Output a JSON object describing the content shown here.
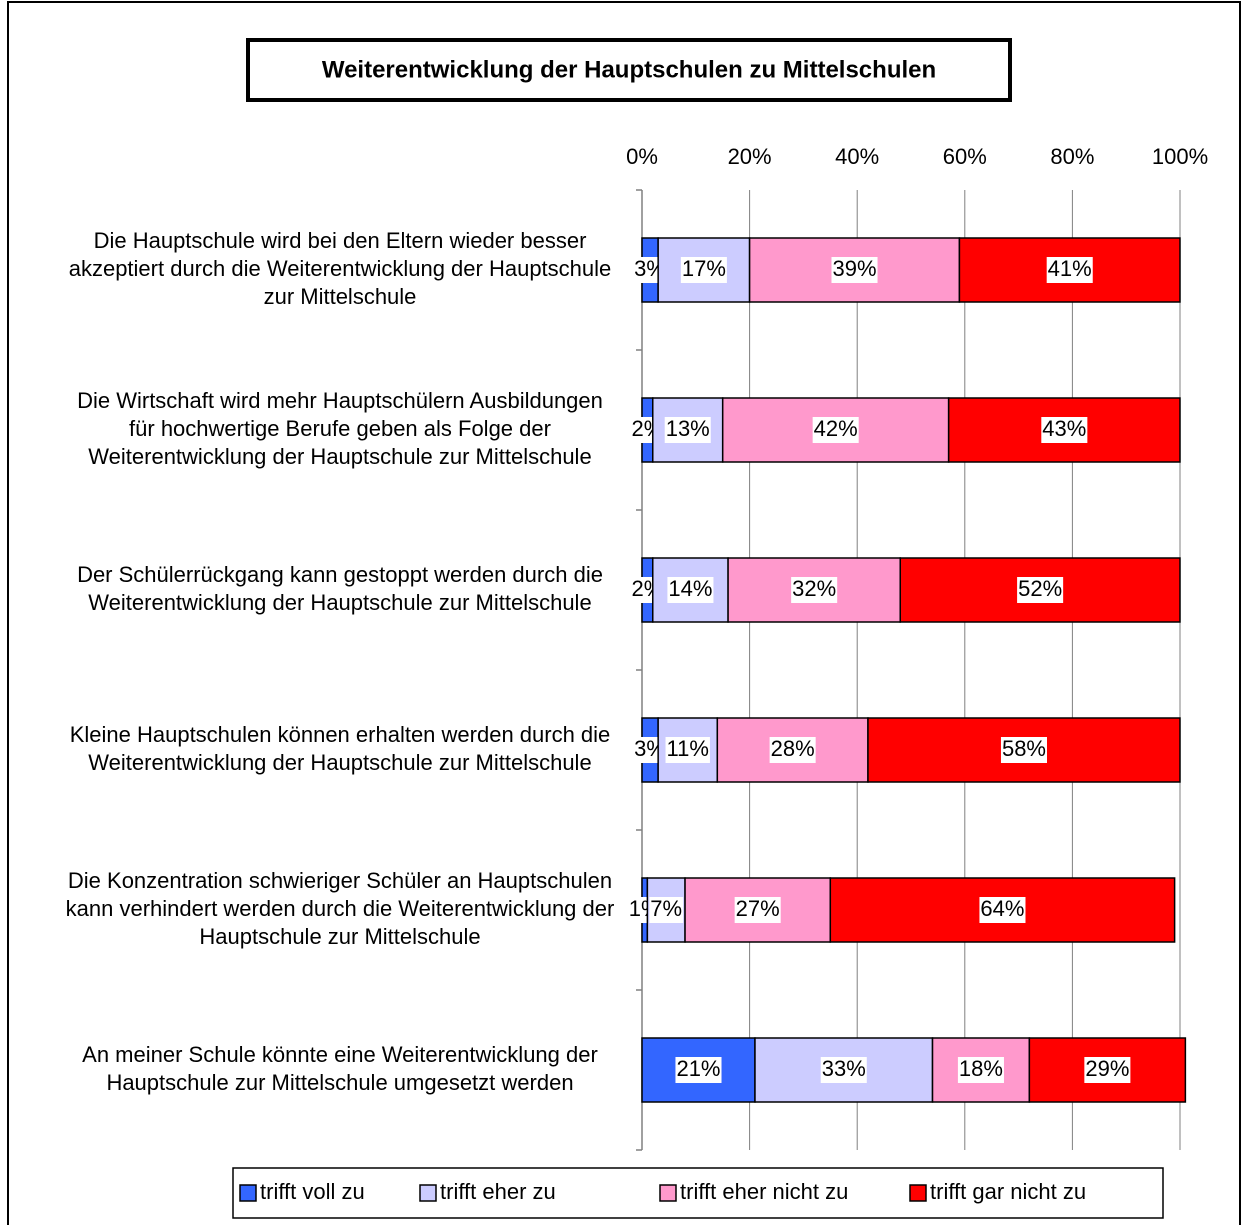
{
  "chart_data": {
    "type": "stacked_bar_horizontal",
    "title": "Weiterentwicklung der Hauptschulen zu Mittelschulen",
    "categories": [
      [
        "Die Hauptschule wird bei den Eltern wieder besser",
        "akzeptiert durch die Weiterentwicklung der Hauptschule",
        "zur Mittelschule"
      ],
      [
        "Die Wirtschaft wird mehr Hauptschülern Ausbildungen",
        "für hochwertige Berufe geben als Folge der",
        "Weiterentwicklung der Hauptschule zur Mittelschule"
      ],
      [
        "Der Schülerrückgang kann gestoppt werden durch die",
        "Weiterentwicklung der Hauptschule zur Mittelschule"
      ],
      [
        "Kleine Hauptschulen können erhalten werden durch die",
        "Weiterentwicklung der Hauptschule zur Mittelschule"
      ],
      [
        "Die Konzentration schwieriger Schüler an Hauptschulen",
        "kann verhindert werden durch die Weiterentwicklung der",
        "Hauptschule zur Mittelschule"
      ],
      [
        "An meiner Schule könnte eine Weiterentwicklung der",
        "Hauptschule zur Mittelschule umgesetzt werden"
      ]
    ],
    "series": [
      {
        "name": "trifft voll zu",
        "color": "#3366ff",
        "values": [
          3,
          2,
          2,
          3,
          1,
          21
        ],
        "value_labels": [
          "3%",
          "2%",
          "2%",
          "3%",
          "1%",
          "21%"
        ]
      },
      {
        "name": "trifft eher zu",
        "color": "#ccccff",
        "values": [
          17,
          13,
          14,
          11,
          7,
          33
        ],
        "value_labels": [
          "17%",
          "13%",
          "14%",
          "11%",
          "7%",
          "33%"
        ]
      },
      {
        "name": "trifft eher nicht zu",
        "color": "#ff99cc",
        "values": [
          39,
          42,
          32,
          28,
          27,
          18
        ],
        "value_labels": [
          "39%",
          "42%",
          "32%",
          "28%",
          "27%",
          "18%"
        ]
      },
      {
        "name": "trifft gar nicht zu",
        "color": "#ff0000",
        "values": [
          41,
          43,
          52,
          58,
          64,
          29
        ],
        "value_labels": [
          "41%",
          "43%",
          "52%",
          "58%",
          "64%",
          "29%"
        ]
      }
    ],
    "xlim": [
      0,
      100
    ],
    "xticks": [
      {
        "value": 0,
        "label": "0%"
      },
      {
        "value": 20,
        "label": "20%"
      },
      {
        "value": 40,
        "label": "40%"
      },
      {
        "value": 60,
        "label": "60%"
      },
      {
        "value": 80,
        "label": "80%"
      },
      {
        "value": 100,
        "label": "100%"
      }
    ],
    "grid": true,
    "legend": "bottom"
  }
}
